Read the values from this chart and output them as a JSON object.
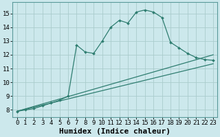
{
  "xlabel": "Humidex (Indice chaleur)",
  "ylabel": "",
  "bg_color": "#cce8ec",
  "grid_color": "#aacccc",
  "line_color": "#2e7d70",
  "xlim": [
    -0.5,
    23.5
  ],
  "ylim": [
    7.5,
    15.8
  ],
  "xticks": [
    0,
    1,
    2,
    3,
    4,
    5,
    6,
    7,
    8,
    9,
    10,
    11,
    12,
    13,
    14,
    15,
    16,
    17,
    18,
    19,
    20,
    21,
    22,
    23
  ],
  "yticks": [
    8,
    9,
    10,
    11,
    12,
    13,
    14,
    15
  ],
  "series1_x": [
    0,
    1,
    2,
    3,
    4,
    5,
    6,
    7,
    8,
    9,
    10,
    11,
    12,
    13,
    14,
    15,
    16,
    17,
    18,
    19,
    20,
    21,
    22,
    23
  ],
  "series1_y": [
    7.9,
    8.0,
    8.1,
    8.3,
    8.5,
    8.7,
    9.0,
    12.7,
    12.2,
    12.1,
    13.0,
    14.0,
    14.5,
    14.3,
    15.1,
    15.25,
    15.1,
    14.7,
    12.9,
    12.5,
    12.1,
    11.8,
    11.65,
    11.6
  ],
  "line2_x": [
    0,
    23
  ],
  "line2_y": [
    7.9,
    12.0
  ],
  "line3_x": [
    0,
    23
  ],
  "line3_y": [
    7.9,
    11.35
  ],
  "font_family": "monospace",
  "tick_fontsize": 6.5,
  "label_fontsize": 8.0
}
